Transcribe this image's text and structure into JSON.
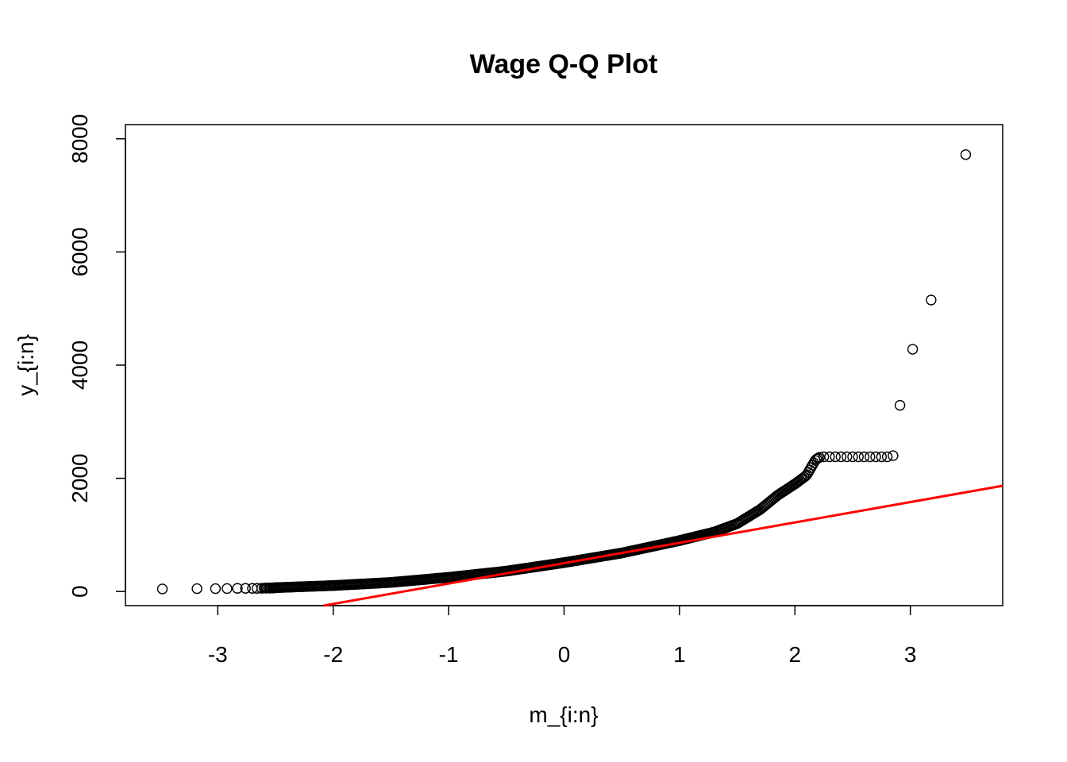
{
  "chart_data": {
    "type": "scatter",
    "title": "Wage Q-Q Plot",
    "xlabel": "m_{i:n}",
    "ylabel": "y_{i:n}",
    "xlim": [
      -3.8,
      3.8
    ],
    "ylim": [
      -250,
      8250
    ],
    "xticks": [
      -3,
      -2,
      -1,
      0,
      1,
      2,
      3
    ],
    "xtick_labels": [
      "-3",
      "-2",
      "-1",
      "0",
      "1",
      "2",
      "3"
    ],
    "yticks": [
      0,
      2000,
      4000,
      6000,
      8000
    ],
    "ytick_labels": [
      "0",
      "2000",
      "4000",
      "6000",
      "8000"
    ],
    "grid": false,
    "colors": {
      "points": "#000000",
      "reference_line": "#ff0000"
    },
    "reference_line": {
      "intercept": 500,
      "slope": 360
    },
    "curve_knots": [
      [
        -2.6,
        60
      ],
      [
        -2.0,
        105
      ],
      [
        -1.5,
        160
      ],
      [
        -1.0,
        250
      ],
      [
        -0.5,
        360
      ],
      [
        0.0,
        510
      ],
      [
        0.5,
        680
      ],
      [
        1.0,
        900
      ],
      [
        1.3,
        1050
      ],
      [
        1.5,
        1200
      ],
      [
        1.7,
        1450
      ],
      [
        1.85,
        1700
      ],
      [
        2.0,
        1900
      ],
      [
        2.1,
        2050
      ],
      [
        2.18,
        2330
      ],
      [
        2.22,
        2380
      ]
    ],
    "points": [
      {
        "x": -3.48,
        "y": 45
      },
      {
        "x": -3.18,
        "y": 50
      },
      {
        "x": -3.02,
        "y": 50
      },
      {
        "x": -2.92,
        "y": 52
      },
      {
        "x": -2.83,
        "y": 55
      },
      {
        "x": -2.76,
        "y": 55
      },
      {
        "x": -2.7,
        "y": 55
      },
      {
        "x": -2.66,
        "y": 55
      },
      {
        "x": -2.62,
        "y": 57
      },
      {
        "x": -2.58,
        "y": 58
      },
      {
        "x": -2.55,
        "y": 58
      },
      {
        "x": -2.52,
        "y": 60
      },
      {
        "x": 2.25,
        "y": 2380
      },
      {
        "x": 2.3,
        "y": 2380
      },
      {
        "x": 2.35,
        "y": 2380
      },
      {
        "x": 2.4,
        "y": 2380
      },
      {
        "x": 2.45,
        "y": 2380
      },
      {
        "x": 2.5,
        "y": 2380
      },
      {
        "x": 2.55,
        "y": 2380
      },
      {
        "x": 2.6,
        "y": 2380
      },
      {
        "x": 2.65,
        "y": 2380
      },
      {
        "x": 2.7,
        "y": 2380
      },
      {
        "x": 2.75,
        "y": 2380
      },
      {
        "x": 2.8,
        "y": 2380
      },
      {
        "x": 2.85,
        "y": 2400
      },
      {
        "x": 2.91,
        "y": 3290
      },
      {
        "x": 3.02,
        "y": 4280
      },
      {
        "x": 3.18,
        "y": 5150
      },
      {
        "x": 3.48,
        "y": 7720
      }
    ]
  }
}
